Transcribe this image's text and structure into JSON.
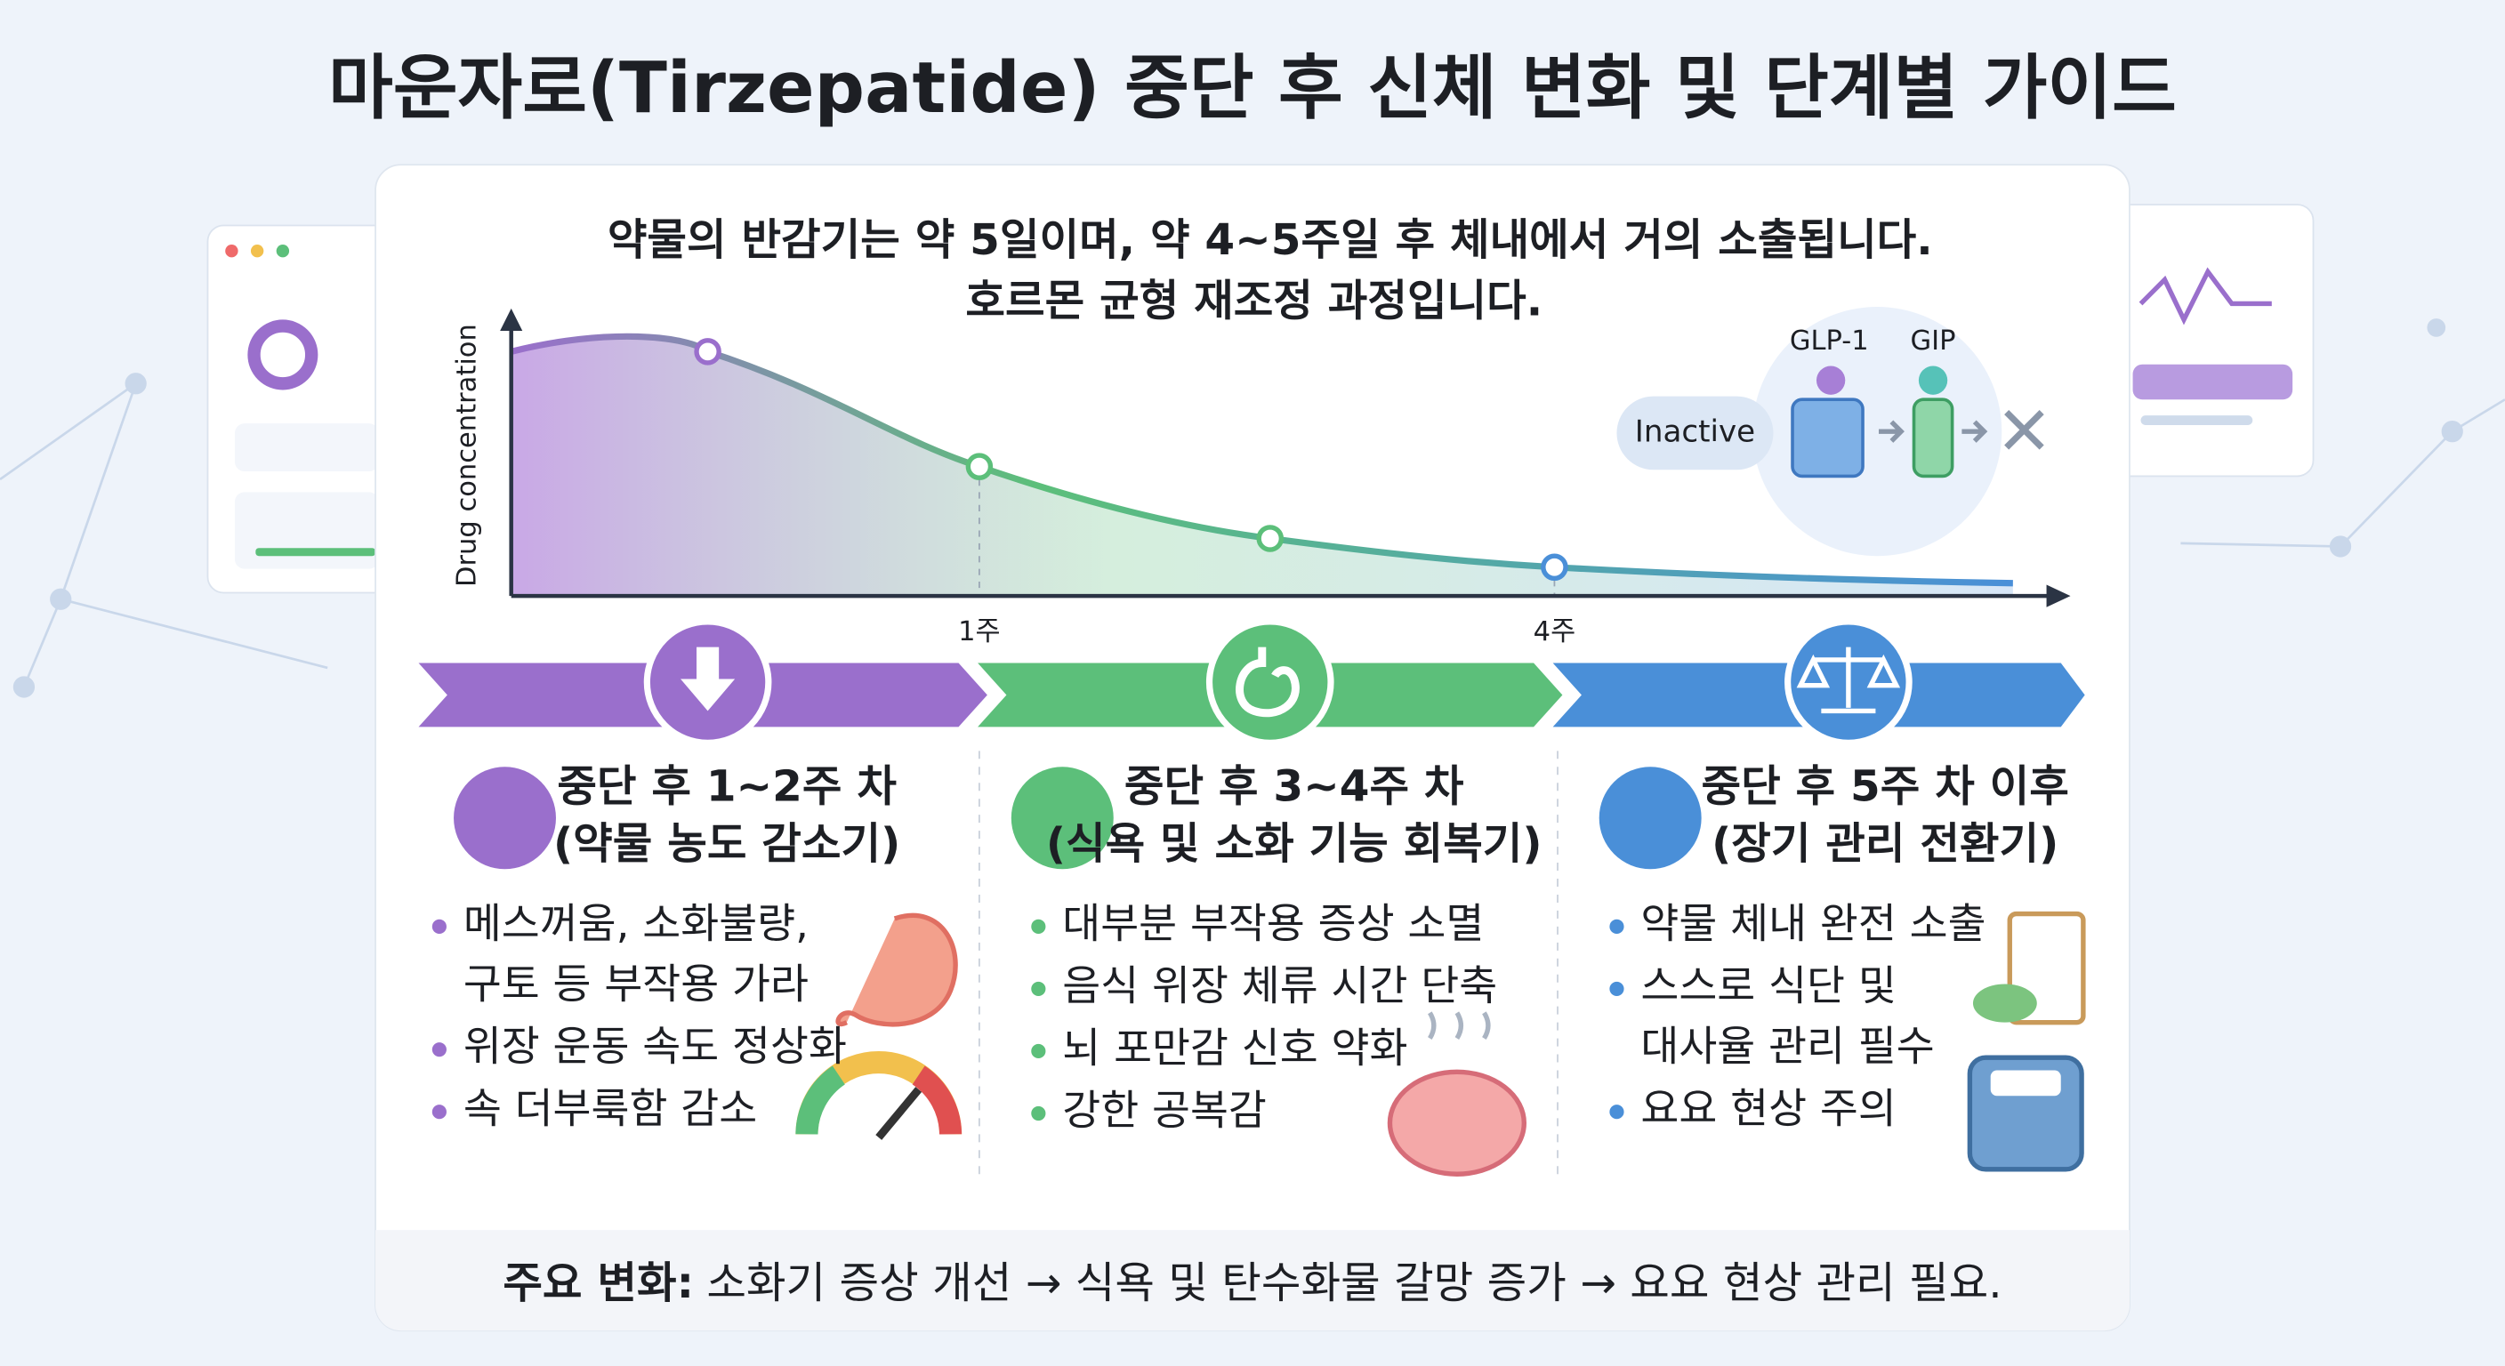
{
  "title": "마운자로(Tirzepatide) 중단 후 신체 변화 및 단계별 가이드",
  "note": [
    "약물의 반감기는 약 5일이며, 약 4~5주일 후 체내에서 거의 소출됩니다.",
    "호르몬 균형 재조정 과정입니다."
  ],
  "graph": {
    "y_label": "Drug concentration",
    "x_labels": [
      "1주",
      "4주"
    ],
    "receptors": [
      "GLP-1",
      "GIP"
    ],
    "state": "Inactive"
  },
  "stages": [
    {
      "title": "중단 후 1~2주 차",
      "subtitle": "(약물 농도 감소기)",
      "items": [
        [
          "메스꺼움, 소화불량,",
          "구토 등 부작용 가라"
        ],
        [
          "위장 운동 속도 정상화"
        ],
        [
          "속 더부룩함 감소"
        ]
      ]
    },
    {
      "title": "중단 후 3~4주 차",
      "subtitle": "(식욕 및 소화 기능 회복기)",
      "items": [
        [
          "대부분 부작용 증상 소멸"
        ],
        [
          "음식 위장 체류 시간 단축"
        ],
        [
          "뇌 포만감 신호 약화"
        ],
        [
          "강한 공복감"
        ]
      ]
    },
    {
      "title": "중단 후 5주 차 이후",
      "subtitle": "(장기 관리 전환기)",
      "items": [
        [
          "약물 체내 완전 소출"
        ],
        [
          "스스로 식단 및",
          "대사율 관리 필수"
        ],
        [
          "요요 현상 주의"
        ]
      ]
    }
  ],
  "footer": {
    "label": "주요 변화:",
    "text": "소화기 증상 개선 → 식욕 및 탄수화물 갈망 증가 → 요요 현상 관리 필요."
  }
}
